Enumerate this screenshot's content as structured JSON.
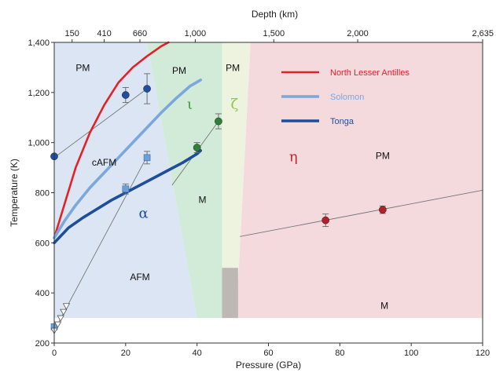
{
  "chart_data": {
    "type": "scatter",
    "xlabel": "Pressure (GPa)",
    "ylabel": "Temperature (K)",
    "top_label": "Depth (km)",
    "xlim": [
      0,
      120
    ],
    "ylim": [
      200,
      1400
    ],
    "x_ticks": [
      0,
      20,
      40,
      60,
      80,
      100,
      120
    ],
    "x_tick_labels": [
      "0",
      "20",
      "40",
      "60",
      "80",
      "100",
      "120"
    ],
    "y_ticks": [
      200,
      400,
      600,
      800,
      1000,
      1200,
      1400
    ],
    "y_tick_labels": [
      "200",
      "400",
      "600",
      "800",
      "1,000",
      "1,200",
      "1,400"
    ],
    "depth_ticks": [
      {
        "pressure": 5,
        "label": "150"
      },
      {
        "pressure": 14,
        "label": "410"
      },
      {
        "pressure": 24,
        "label": "660"
      },
      {
        "pressure": 39.5,
        "label": "1,000"
      },
      {
        "pressure": 61.5,
        "label": "1,500"
      },
      {
        "pressure": 85,
        "label": "2,000"
      },
      {
        "pressure": 124,
        "label": "2,635"
      }
    ],
    "phase_regions": [
      {
        "name": "alpha",
        "color": "#dbe5f3",
        "polygon": [
          [
            0,
            300
          ],
          [
            0,
            1400
          ],
          [
            26,
            1400
          ],
          [
            40,
            300
          ]
        ]
      },
      {
        "name": "iota",
        "color": "#d2ead8",
        "polygon": [
          [
            26,
            1400
          ],
          [
            47,
            1400
          ],
          [
            47,
            300
          ],
          [
            40,
            300
          ]
        ]
      },
      {
        "name": "zeta",
        "color": "#eef3df",
        "polygon": [
          [
            47,
            1400
          ],
          [
            55,
            1400
          ],
          [
            51,
            300
          ],
          [
            47,
            300
          ]
        ]
      },
      {
        "name": "eta",
        "color": "#f5dadd",
        "polygon": [
          [
            55,
            1400
          ],
          [
            120,
            1400
          ],
          [
            120,
            300
          ],
          [
            51,
            300
          ]
        ]
      },
      {
        "name": "gray",
        "color": "#bdb8b3",
        "polygon": [
          [
            47,
            300
          ],
          [
            47,
            500
          ],
          [
            51.5,
            500
          ],
          [
            51.5,
            300
          ]
        ]
      }
    ],
    "greek_labels": [
      {
        "text": "α",
        "x": 25,
        "y": 700,
        "color": "#1f4fa0"
      },
      {
        "text": "ι",
        "x": 38,
        "y": 1135,
        "color": "#3d9a3f"
      },
      {
        "text": "ζ",
        "x": 50.5,
        "y": 1135,
        "color": "#8dc63f"
      },
      {
        "text": "η",
        "x": 67,
        "y": 925,
        "color": "#c0272d"
      }
    ],
    "region_labels": [
      {
        "text": "PM",
        "x": 8,
        "y": 1285
      },
      {
        "text": "PM",
        "x": 35,
        "y": 1275
      },
      {
        "text": "PM",
        "x": 50,
        "y": 1285
      },
      {
        "text": "cAFM",
        "x": 14,
        "y": 908
      },
      {
        "text": "M",
        "x": 41.5,
        "y": 760
      },
      {
        "text": "AFM",
        "x": 24,
        "y": 450
      },
      {
        "text": "PM",
        "x": 92,
        "y": 935
      },
      {
        "text": "M",
        "x": 92.5,
        "y": 337
      }
    ],
    "series": [
      {
        "name": "North Lesser Antilles",
        "color": "#e32228",
        "width": 2.6,
        "points": [
          [
            0,
            620
          ],
          [
            3,
            760
          ],
          [
            6,
            900
          ],
          [
            10,
            1040
          ],
          [
            14,
            1150
          ],
          [
            18,
            1240
          ],
          [
            22,
            1300
          ],
          [
            26,
            1345
          ],
          [
            30,
            1385
          ],
          [
            32,
            1400
          ]
        ]
      },
      {
        "name": "Solomon",
        "color": "#7aa8dd",
        "width": 3.6,
        "points": [
          [
            0,
            620
          ],
          [
            3,
            690
          ],
          [
            6,
            750
          ],
          [
            10,
            820
          ],
          [
            14,
            880
          ],
          [
            18,
            940
          ],
          [
            22,
            1000
          ],
          [
            26,
            1060
          ],
          [
            30,
            1120
          ],
          [
            34,
            1175
          ],
          [
            38,
            1225
          ],
          [
            41,
            1250
          ]
        ]
      },
      {
        "name": "Tonga",
        "color": "#1d4d9b",
        "width": 3.6,
        "points": [
          [
            0,
            600
          ],
          [
            4,
            660
          ],
          [
            8,
            700
          ],
          [
            12,
            735
          ],
          [
            16,
            770
          ],
          [
            20,
            800
          ],
          [
            24,
            830
          ],
          [
            28,
            860
          ],
          [
            32,
            890
          ],
          [
            36,
            920
          ],
          [
            40,
            955
          ],
          [
            41,
            968
          ]
        ]
      }
    ],
    "thin_lines": [
      {
        "color": "#777",
        "points": [
          [
            0,
            940
          ],
          [
            26,
            1215
          ]
        ]
      },
      {
        "color": "#777",
        "points": [
          [
            0,
            250
          ],
          [
            26,
            945
          ]
        ]
      },
      {
        "color": "#777",
        "points": [
          [
            33,
            830
          ],
          [
            46,
            1085
          ]
        ]
      },
      {
        "color": "#777",
        "points": [
          [
            52,
            625
          ],
          [
            120,
            810
          ]
        ]
      }
    ],
    "points": [
      {
        "group": "circle-blue",
        "color": "#1f4fa0",
        "x": 0,
        "y": 945,
        "err": 0
      },
      {
        "group": "circle-blue",
        "color": "#1f4fa0",
        "x": 20,
        "y": 1190,
        "err": 30
      },
      {
        "group": "circle-blue",
        "color": "#1f4fa0",
        "x": 26,
        "y": 1215,
        "err": 60
      },
      {
        "group": "square-lightblue",
        "color": "#6a9fd8",
        "x": 0,
        "y": 265,
        "err": 8
      },
      {
        "group": "square-lightblue",
        "color": "#6a9fd8",
        "x": 20,
        "y": 815,
        "err": 20
      },
      {
        "group": "square-lightblue",
        "color": "#6a9fd8",
        "x": 26,
        "y": 940,
        "err": 25
      },
      {
        "group": "circle-green",
        "color": "#2f7f3a",
        "x": 40,
        "y": 980,
        "err": 20
      },
      {
        "group": "circle-green",
        "color": "#2f7f3a",
        "x": 46,
        "y": 1085,
        "err": 30
      },
      {
        "group": "circle-red",
        "color": "#b2202a",
        "x": 76,
        "y": 690,
        "err": 25
      },
      {
        "group": "circle-red",
        "color": "#b2202a",
        "x": 92,
        "y": 732,
        "err": 15
      }
    ],
    "triangles": [
      {
        "x": 0,
        "y": 250
      },
      {
        "x": 1,
        "y": 275
      },
      {
        "x": 1.8,
        "y": 300
      },
      {
        "x": 2.6,
        "y": 325
      },
      {
        "x": 3.4,
        "y": 348
      }
    ],
    "grid": false,
    "legend_placement": "top-right"
  }
}
